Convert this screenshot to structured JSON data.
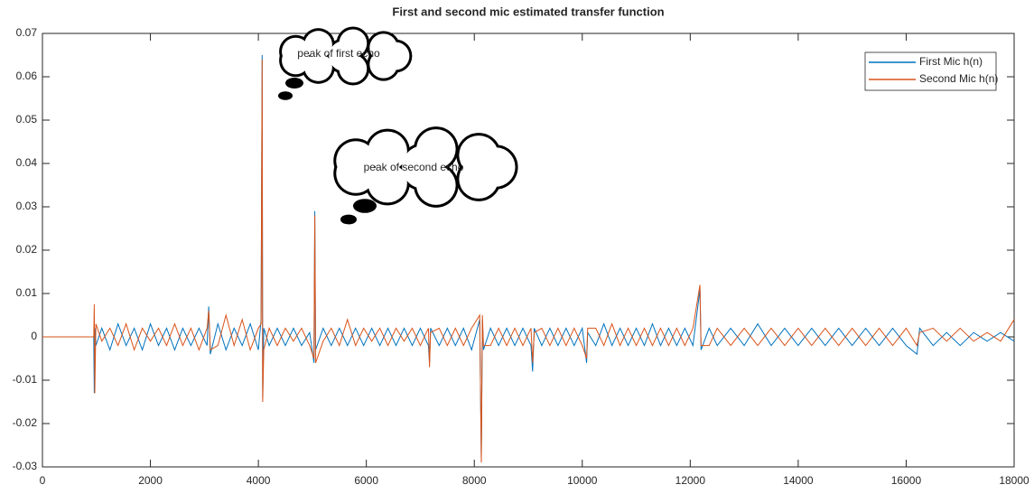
{
  "chart_data": {
    "type": "line",
    "title": "First and second mic estimated transfer function",
    "x": [
      0,
      950,
      960,
      970,
      990,
      1100,
      1250,
      1400,
      1550,
      1700,
      1850,
      2000,
      2150,
      2300,
      2450,
      2600,
      2750,
      2900,
      3050,
      3080,
      3110,
      3250,
      3400,
      3550,
      3700,
      3850,
      4000,
      4050,
      4070,
      4080,
      4100,
      4200,
      4350,
      4500,
      4650,
      4800,
      4950,
      5030,
      5045,
      5060,
      5200,
      5350,
      5500,
      5650,
      5800,
      5950,
      6100,
      6250,
      6400,
      6550,
      6700,
      6850,
      7000,
      7150,
      7170,
      7190,
      7350,
      7500,
      7650,
      7800,
      7950,
      8100,
      8130,
      8150,
      8170,
      8300,
      8450,
      8600,
      8750,
      8900,
      9050,
      9080,
      9110,
      9250,
      9400,
      9550,
      9700,
      9850,
      10000,
      10080,
      10100,
      10250,
      10400,
      10550,
      10700,
      10850,
      11000,
      11150,
      11300,
      11450,
      11600,
      11750,
      11900,
      12050,
      12180,
      12200,
      12350,
      12500,
      12750,
      13000,
      13250,
      13500,
      13750,
      14000,
      14250,
      14500,
      14750,
      15000,
      15250,
      15500,
      15750,
      16000,
      16200,
      16250,
      16500,
      16750,
      17000,
      17250,
      17500,
      17750,
      18000
    ],
    "series": [
      {
        "name": "First Mic h(n)",
        "color": "#0072bd",
        "values": [
          0,
          0,
          -0.013,
          0.002,
          -0.002,
          0.002,
          -0.003,
          0.003,
          -0.002,
          0.002,
          -0.003,
          0.003,
          -0.002,
          0.002,
          -0.003,
          0.002,
          -0.002,
          0.002,
          -0.002,
          0.007,
          -0.004,
          0.003,
          -0.003,
          0.002,
          -0.002,
          0.003,
          -0.003,
          0.004,
          0.065,
          -0.014,
          0.002,
          -0.002,
          0.002,
          -0.002,
          0.002,
          -0.002,
          0.001,
          -0.006,
          0.029,
          -0.003,
          0.002,
          -0.002,
          0.002,
          -0.002,
          0.002,
          -0.002,
          0.002,
          -0.002,
          0.002,
          -0.002,
          0.002,
          -0.002,
          0.002,
          -0.002,
          -0.006,
          0.002,
          -0.002,
          0.002,
          -0.002,
          0.002,
          -0.003,
          0.004,
          -0.028,
          0.004,
          -0.003,
          0.002,
          -0.002,
          0.002,
          -0.002,
          0.002,
          -0.002,
          -0.008,
          0.002,
          -0.002,
          0.002,
          -0.002,
          0.002,
          -0.002,
          0.002,
          -0.006,
          0.001,
          -0.002,
          0.003,
          -0.002,
          0.002,
          -0.002,
          0.002,
          -0.002,
          0.003,
          -0.002,
          0.002,
          -0.002,
          0.002,
          -0.002,
          0.011,
          -0.003,
          0.002,
          -0.002,
          0.002,
          -0.002,
          0.003,
          -0.002,
          0.002,
          -0.002,
          0.002,
          -0.002,
          0.002,
          -0.002,
          0.002,
          -0.002,
          0.002,
          -0.002,
          -0.004,
          0.002,
          -0.002,
          0.001,
          -0.002,
          0.001,
          -0.001,
          0.001,
          -0.001
        ]
      },
      {
        "name": "Second Mic h(n)",
        "color": "#d95319",
        "values": [
          0,
          0,
          0.0075,
          -0.013,
          0.003,
          -0.001,
          0.002,
          -0.002,
          0.003,
          -0.003,
          0.002,
          -0.001,
          0.002,
          -0.002,
          0.003,
          -0.002,
          0.002,
          -0.003,
          0.002,
          0.006,
          -0.003,
          -0.002,
          0.005,
          -0.002,
          0.004,
          -0.003,
          0.002,
          0.003,
          0.064,
          -0.015,
          -0.003,
          0.002,
          -0.002,
          0.002,
          -0.001,
          0.002,
          -0.002,
          -0.005,
          0.028,
          -0.006,
          -0.001,
          0.002,
          -0.002,
          0.004,
          -0.002,
          0.002,
          -0.001,
          0.002,
          -0.002,
          0.002,
          -0.001,
          0.002,
          -0.002,
          0.002,
          -0.007,
          0.001,
          0.002,
          -0.002,
          0.002,
          -0.002,
          0.002,
          0.005,
          -0.029,
          0.005,
          -0.002,
          -0.002,
          0.002,
          -0.002,
          0.002,
          -0.002,
          0.002,
          -0.006,
          0.001,
          0.002,
          -0.002,
          0.002,
          -0.002,
          0.002,
          -0.002,
          -0.005,
          0.002,
          0.002,
          -0.002,
          0.003,
          -0.002,
          0.002,
          -0.002,
          0.002,
          -0.002,
          0.002,
          -0.002,
          0.002,
          -0.002,
          0.002,
          0.012,
          -0.002,
          -0.002,
          0.002,
          -0.002,
          0.002,
          -0.002,
          0.002,
          -0.002,
          0.002,
          -0.002,
          0.002,
          -0.002,
          0.002,
          -0.002,
          0.002,
          -0.002,
          0.002,
          -0.002,
          0.001,
          0.002,
          -0.001,
          0.002,
          -0.001,
          0.001,
          -0.001,
          0.004
        ]
      }
    ],
    "xlim": [
      0,
      18000
    ],
    "xticks": [
      0,
      2000,
      4000,
      6000,
      8000,
      10000,
      12000,
      14000,
      16000,
      18000
    ],
    "ylim": [
      -0.03,
      0.07
    ],
    "yticks": [
      -0.03,
      -0.02,
      -0.01,
      0,
      0.01,
      0.02,
      0.03,
      0.04,
      0.05,
      0.06,
      0.07
    ],
    "grid": false,
    "legend": "upper right",
    "annotations": [
      {
        "text": "peak of first echo"
      },
      {
        "text": "peak of second echo"
      }
    ]
  }
}
